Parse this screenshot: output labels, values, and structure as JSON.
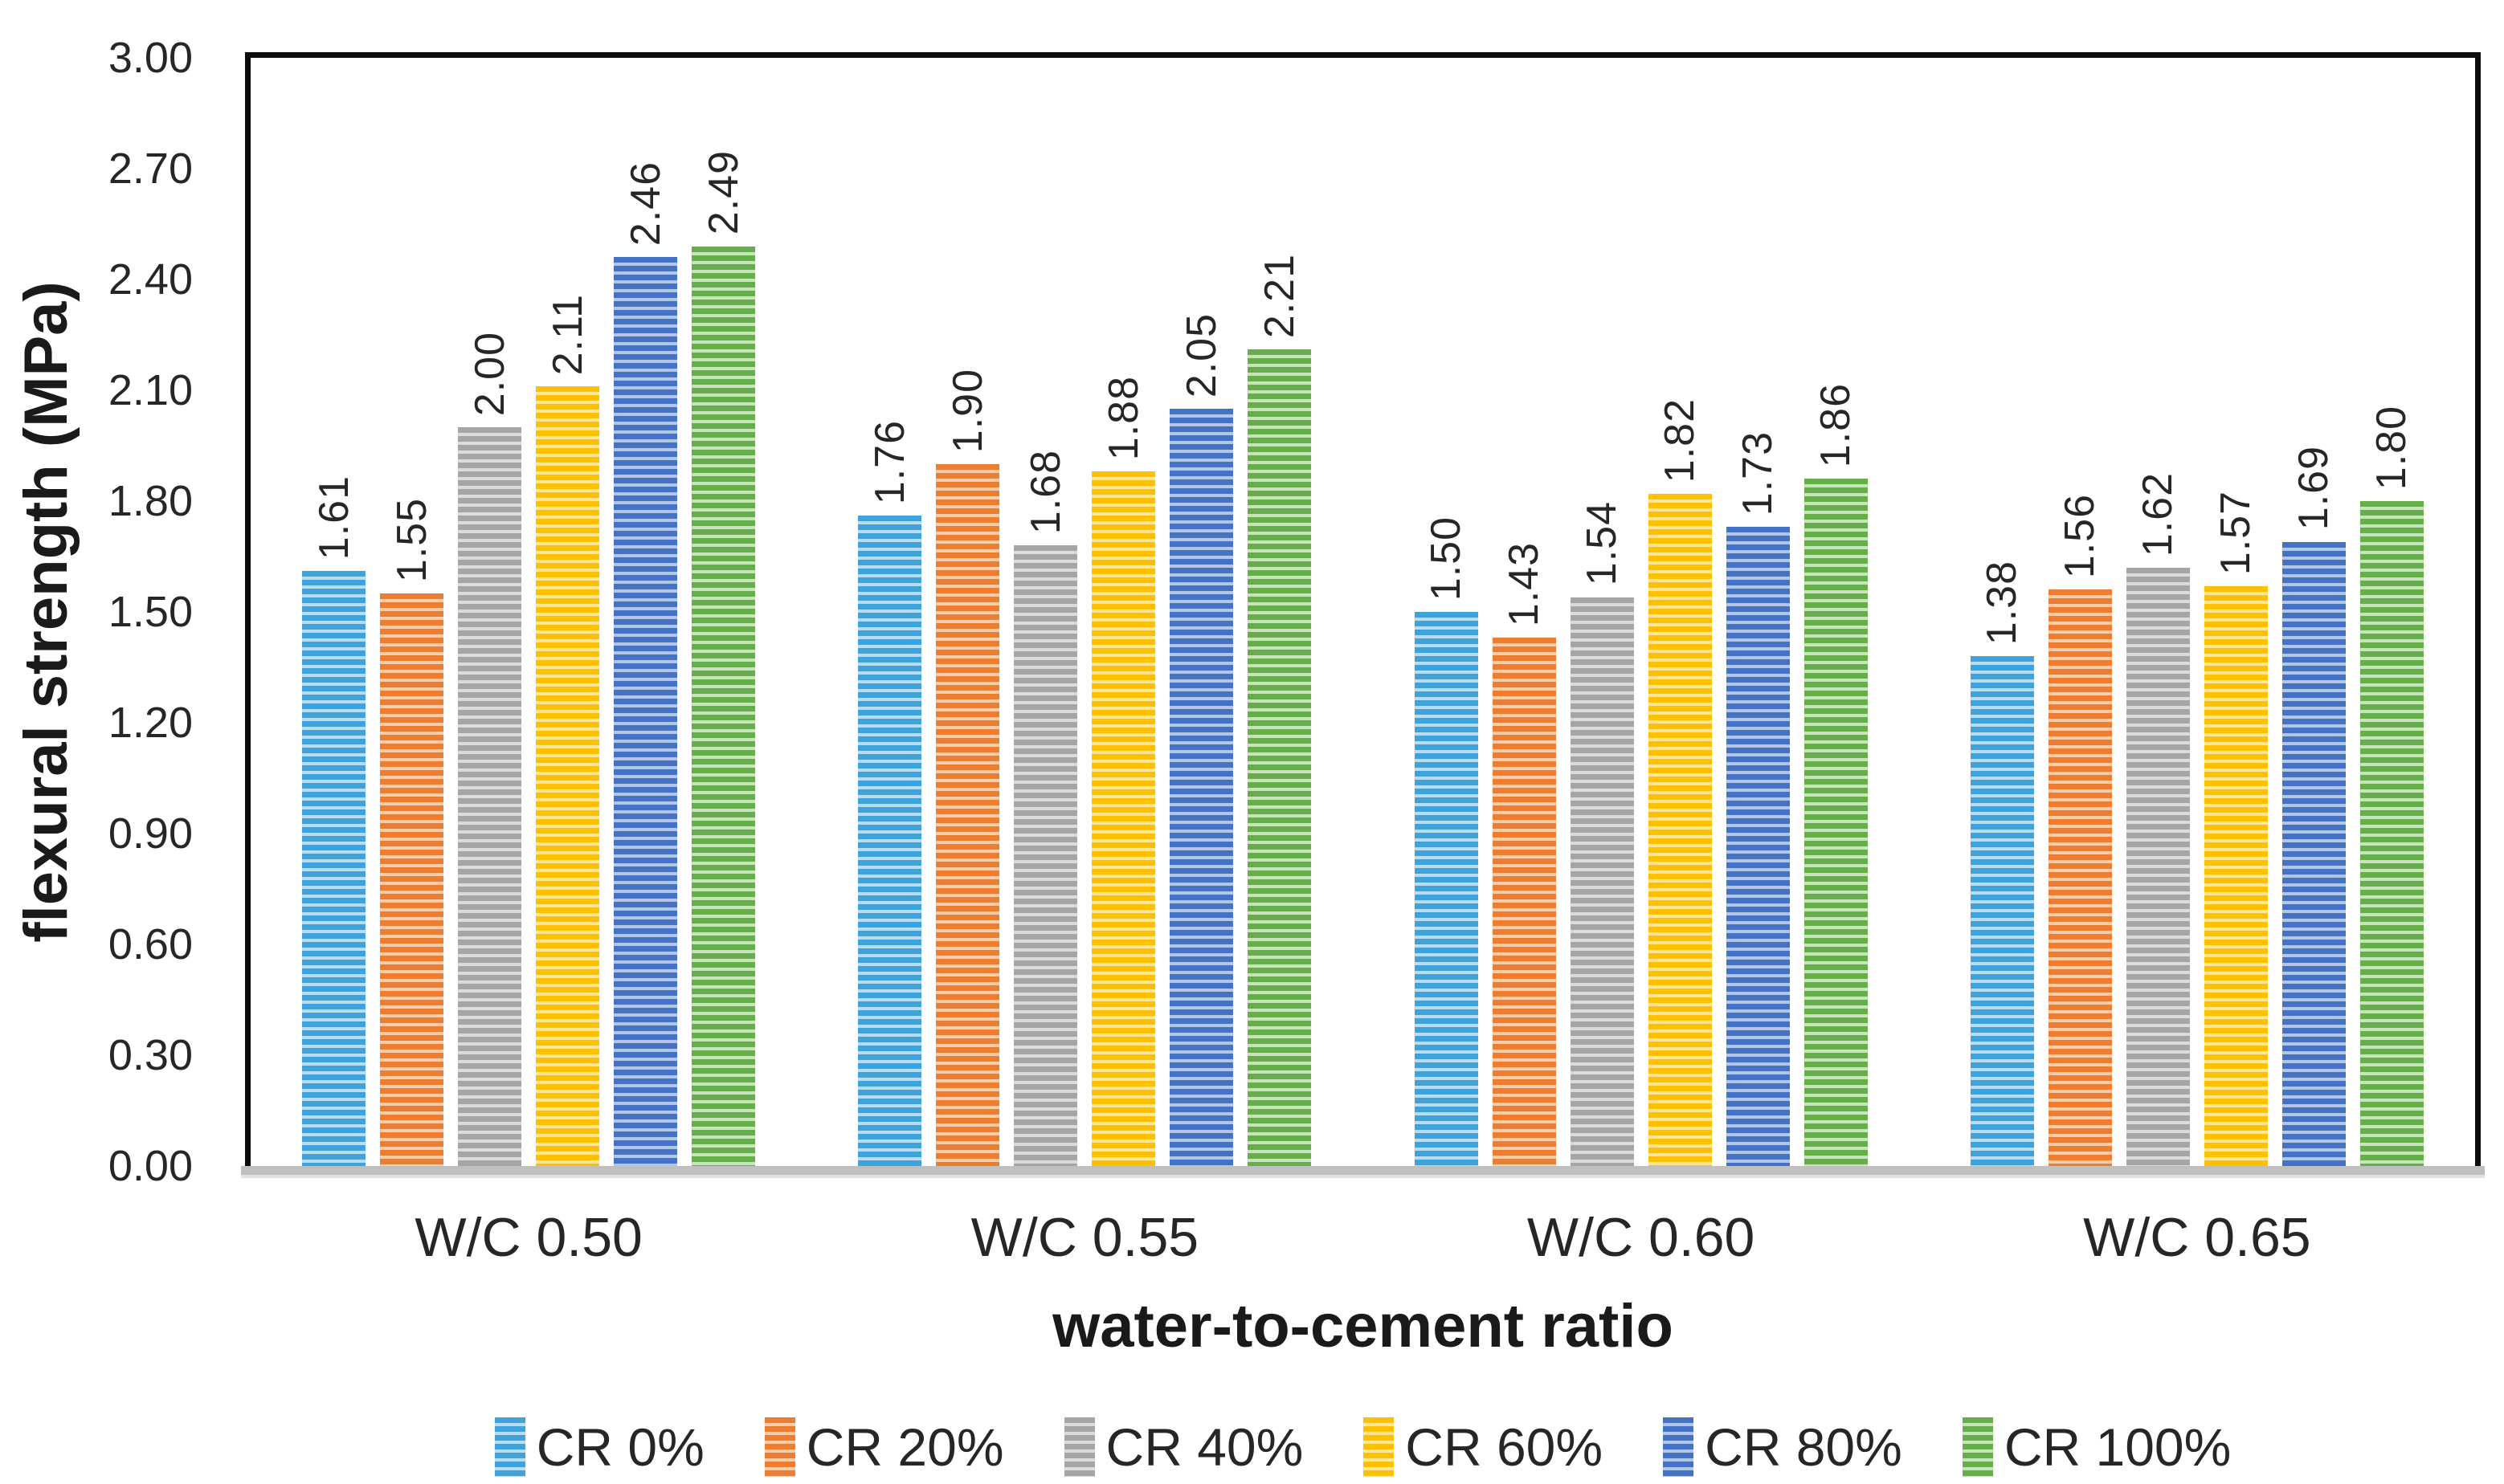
{
  "chart_data": {
    "type": "bar",
    "title": "",
    "xlabel": "water-to-cement ratio",
    "ylabel": "flexural strength (MPa)",
    "categories": [
      "W/C 0.50",
      "W/C 0.55",
      "W/C 0.60",
      "W/C 0.65"
    ],
    "series": [
      {
        "name": "CR 0%",
        "color": "#3FA2DB",
        "light_color": "#B8DDF3",
        "values": [
          1.61,
          1.76,
          1.5,
          1.38
        ]
      },
      {
        "name": "CR 20%",
        "color": "#ED7D31",
        "light_color": "#F9CCA8",
        "values": [
          1.55,
          1.9,
          1.43,
          1.56
        ]
      },
      {
        "name": "CR 40%",
        "color": "#A5A5A5",
        "light_color": "#DBDBDB",
        "values": [
          2.0,
          1.68,
          1.54,
          1.62
        ]
      },
      {
        "name": "CR 60%",
        "color": "#FFC000",
        "light_color": "#FFE699",
        "values": [
          2.11,
          1.88,
          1.82,
          1.57
        ]
      },
      {
        "name": "CR 80%",
        "color": "#4472C4",
        "light_color": "#B3C6E7",
        "values": [
          2.46,
          2.05,
          1.73,
          1.69
        ]
      },
      {
        "name": "CR 100%",
        "color": "#66AE49",
        "light_color": "#C8E4BA",
        "values": [
          2.49,
          2.21,
          1.86,
          1.8
        ]
      }
    ],
    "value_labels": {
      "W/C 0.50": [
        "1.61",
        "1.55",
        "2.00",
        "2.11",
        "2.46",
        "2.49"
      ],
      "W/C 0.55": [
        "1.76",
        "1.90",
        "1.68",
        "1.88",
        "2.05",
        "2.21"
      ],
      "W/C 0.60": [
        "1.50",
        "1.43",
        "1.54",
        "1.82",
        "1.73",
        "1.86"
      ],
      "W/C 0.65": [
        "1.38",
        "1.56",
        "1.62",
        "1.57",
        "1.69",
        "1.80"
      ]
    },
    "ylim": [
      0,
      3
    ],
    "ytick_step": 0.3,
    "yticks": [
      "0.00",
      "0.30",
      "0.60",
      "0.90",
      "1.20",
      "1.50",
      "1.80",
      "2.10",
      "2.40",
      "2.70",
      "3.00"
    ],
    "grid": false,
    "legend_position": "bottom",
    "bar_pattern": "horizontal-stripes",
    "axis_line_color": "#0d0d0d",
    "baseline_color": "#bfbfbf"
  }
}
